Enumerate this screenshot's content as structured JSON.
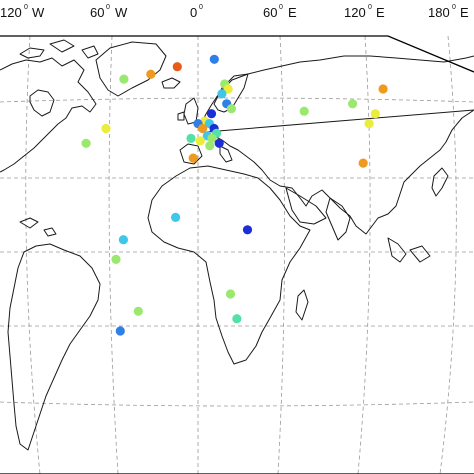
{
  "map": {
    "lon_labels": [
      {
        "value": "120",
        "hemisphere": "W"
      },
      {
        "value": "60",
        "hemisphere": "W"
      },
      {
        "value": "0",
        "hemisphere": ""
      },
      {
        "value": "60",
        "hemisphere": "E"
      },
      {
        "value": "120",
        "hemisphere": "E"
      },
      {
        "value": "180",
        "hemisphere": "E"
      }
    ],
    "degree_symbol": "0",
    "station_colors": {
      "dark_blue": "#1c2fd6",
      "blue": "#2f7fe8",
      "cyan": "#3fc6e8",
      "teal": "#55e0a8",
      "light_green": "#9be86e",
      "yellow": "#ecec3a",
      "orange": "#ef9a1e",
      "red_orange": "#e85a16"
    },
    "stations": [
      {
        "region": "Svalbard",
        "lon": 16,
        "lat": 78,
        "color": "blue"
      },
      {
        "region": "Greenland",
        "lon": -20,
        "lat": 75,
        "color": "red_orange"
      },
      {
        "region": "Greenland",
        "lon": -45,
        "lat": 72,
        "color": "orange"
      },
      {
        "region": "Greenland",
        "lon": -70,
        "lat": 70,
        "color": "light_green"
      },
      {
        "region": "Scandinavia",
        "lon": 25,
        "lat": 68,
        "color": "light_green"
      },
      {
        "region": "Scandinavia",
        "lon": 28,
        "lat": 66,
        "color": "yellow"
      },
      {
        "region": "Scandinavia",
        "lon": 22,
        "lat": 64,
        "color": "cyan"
      },
      {
        "region": "Scandinavia",
        "lon": 26,
        "lat": 60,
        "color": "blue"
      },
      {
        "region": "Scandinavia",
        "lon": 30,
        "lat": 58,
        "color": "light_green"
      },
      {
        "region": "Europe",
        "lon": 12,
        "lat": 56,
        "color": "dark_blue"
      },
      {
        "region": "Europe",
        "lon": 6,
        "lat": 53,
        "color": "yellow"
      },
      {
        "region": "Europe",
        "lon": 0,
        "lat": 52,
        "color": "blue"
      },
      {
        "region": "Europe",
        "lon": 10,
        "lat": 52,
        "color": "cyan"
      },
      {
        "region": "Europe",
        "lon": 14,
        "lat": 50,
        "color": "dark_blue"
      },
      {
        "region": "Europe",
        "lon": 4,
        "lat": 50,
        "color": "orange"
      },
      {
        "region": "Europe",
        "lon": 16,
        "lat": 48,
        "color": "teal"
      },
      {
        "region": "Europe",
        "lon": 8,
        "lat": 47,
        "color": "cyan"
      },
      {
        "region": "Europe",
        "lon": 12,
        "lat": 46,
        "color": "light_green"
      },
      {
        "region": "Europe",
        "lon": 2,
        "lat": 45,
        "color": "yellow"
      },
      {
        "region": "Europe",
        "lon": 18,
        "lat": 44,
        "color": "dark_blue"
      },
      {
        "region": "Europe",
        "lon": -6,
        "lat": 46,
        "color": "teal"
      },
      {
        "region": "Europe",
        "lon": 10,
        "lat": 43,
        "color": "light_green"
      },
      {
        "region": "Iberia",
        "lon": -4,
        "lat": 38,
        "color": "orange"
      },
      {
        "region": "Russia",
        "lon": 95,
        "lat": 57,
        "color": "light_green"
      },
      {
        "region": "Russia",
        "lon": 140,
        "lat": 60,
        "color": "light_green"
      },
      {
        "region": "Russia",
        "lon": 150,
        "lat": 52,
        "color": "yellow"
      },
      {
        "region": "Russia",
        "lon": 158,
        "lat": 56,
        "color": "yellow"
      },
      {
        "region": "Russia",
        "lon": 172,
        "lat": 66,
        "color": "orange"
      },
      {
        "region": "Japan",
        "lon": 136,
        "lat": 36,
        "color": "orange"
      },
      {
        "region": "North America",
        "lon": -80,
        "lat": 50,
        "color": "yellow"
      },
      {
        "region": "North America",
        "lon": -95,
        "lat": 44,
        "color": "light_green"
      },
      {
        "region": "West Africa",
        "lon": -17,
        "lat": 14,
        "color": "cyan"
      },
      {
        "region": "East Africa",
        "lon": 37,
        "lat": 9,
        "color": "dark_blue"
      },
      {
        "region": "South America",
        "lon": -55,
        "lat": 5,
        "color": "cyan"
      },
      {
        "region": "South America",
        "lon": -60,
        "lat": -3,
        "color": "light_green"
      },
      {
        "region": "South America",
        "lon": -47,
        "lat": -24,
        "color": "light_green"
      },
      {
        "region": "South America",
        "lon": -63,
        "lat": -32,
        "color": "blue"
      },
      {
        "region": "Southern Africa",
        "lon": 25,
        "lat": -17,
        "color": "light_green"
      },
      {
        "region": "Southern Africa",
        "lon": 31,
        "lat": -27,
        "color": "teal"
      }
    ]
  }
}
